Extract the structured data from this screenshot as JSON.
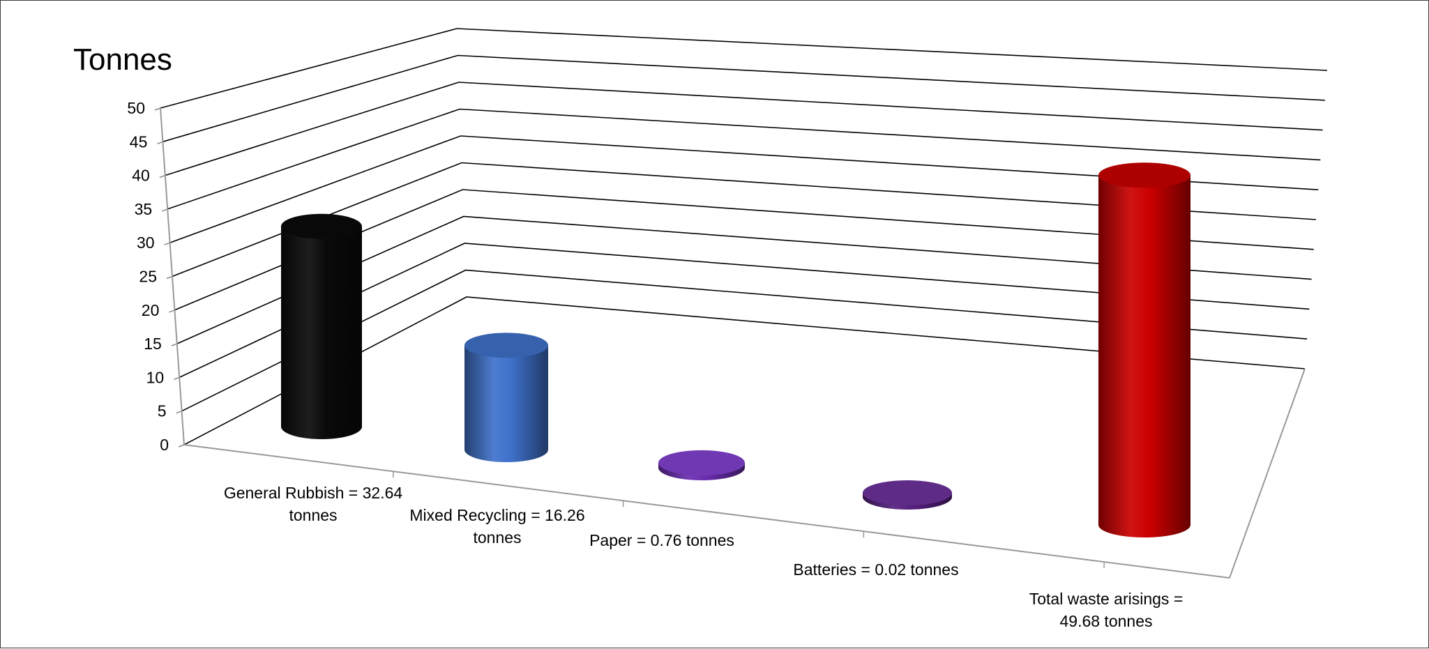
{
  "chart_data": {
    "type": "bar",
    "style": "3d-cylinder",
    "ylabel": "Tonnes",
    "title": "",
    "xlabel": "",
    "ylim": [
      0,
      50
    ],
    "y_ticks": [
      "0",
      "5",
      "10",
      "15",
      "20",
      "25",
      "30",
      "35",
      "40",
      "45",
      "50"
    ],
    "grid": true,
    "legend": "none",
    "categories": [
      {
        "line1": "General Rubbish = 32.64",
        "line2": "tonnes"
      },
      {
        "line1": "Mixed Recycling = 16.26",
        "line2": "tonnes"
      },
      {
        "line1": "Paper = 0.76 tonnes",
        "line2": ""
      },
      {
        "line1": "Batteries = 0.02 tonnes",
        "line2": ""
      },
      {
        "line1": "Total waste arisings =",
        "line2": "49.68 tonnes"
      }
    ],
    "values": [
      32.64,
      16.26,
      0.76,
      0.02,
      49.68
    ],
    "colors": [
      "#0a0a0a",
      "#3f72cc",
      "#6a2db0",
      "#552080",
      "#cc0000"
    ]
  }
}
